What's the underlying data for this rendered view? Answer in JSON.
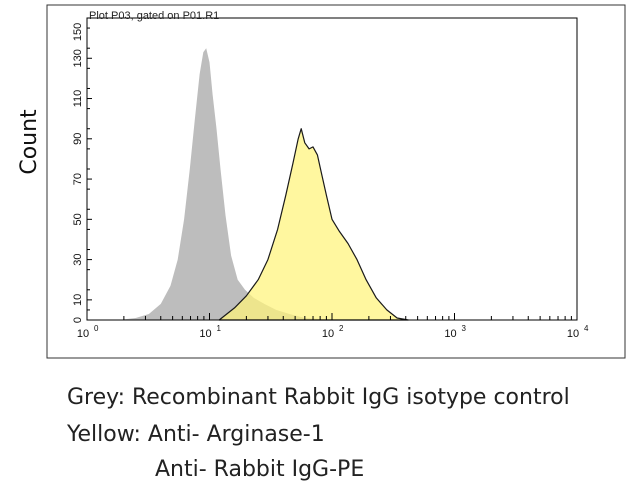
{
  "chart_data": {
    "type": "area",
    "title": "Plot P03, gated on P01.R1",
    "ylabel": "Count",
    "xlabel": "",
    "x_scale": "log",
    "xlim": [
      1,
      10000
    ],
    "ylim": [
      0,
      150
    ],
    "x_ticks": [
      1,
      10,
      100,
      1000,
      10000
    ],
    "x_tick_labels": [
      {
        "base": "10",
        "exp": "0"
      },
      {
        "base": "10",
        "exp": "1"
      },
      {
        "base": "10",
        "exp": "2"
      },
      {
        "base": "10",
        "exp": "3"
      },
      {
        "base": "10",
        "exp": "4"
      }
    ],
    "y_ticks": [
      "0",
      "10",
      "30",
      "50",
      "70",
      "90",
      "110",
      "130",
      "150"
    ],
    "grid": false,
    "series": [
      {
        "color": "#bdbdbd",
        "x": [
          1.8,
          2.5,
          3.2,
          4.0,
          4.8,
          5.5,
          6.2,
          6.9,
          7.6,
          8.3,
          8.9,
          9.4,
          10.0,
          10.6,
          11.4,
          12.3,
          13.5,
          15.0,
          17.0,
          19.5,
          23.0,
          28.0,
          35.0,
          45.0,
          60.0,
          80.0,
          110.0
        ],
        "y": [
          0,
          1,
          3,
          8,
          17,
          30,
          50,
          75,
          100,
          122,
          133,
          135,
          128,
          112,
          95,
          75,
          52,
          32,
          20,
          15,
          11,
          8,
          5,
          3,
          1,
          0.5,
          0
        ]
      },
      {
        "color": "#fff47a",
        "x": [
          12,
          16,
          20,
          25,
          30,
          36,
          42,
          48,
          53,
          56,
          60,
          65,
          70,
          76,
          82,
          90,
          100,
          115,
          135,
          160,
          190,
          230,
          280,
          340,
          420
        ],
        "y": [
          0,
          6,
          12,
          20,
          30,
          45,
          62,
          78,
          90,
          95,
          88,
          85,
          86,
          82,
          73,
          62,
          50,
          44,
          38,
          30,
          20,
          11,
          5,
          1,
          0
        ]
      }
    ]
  },
  "caption": {
    "line1": "Grey: Recombinant Rabbit IgG isotype control",
    "line2": "Yellow: Anti- Arginase-1",
    "line3": "Anti- Rabbit IgG-PE"
  }
}
